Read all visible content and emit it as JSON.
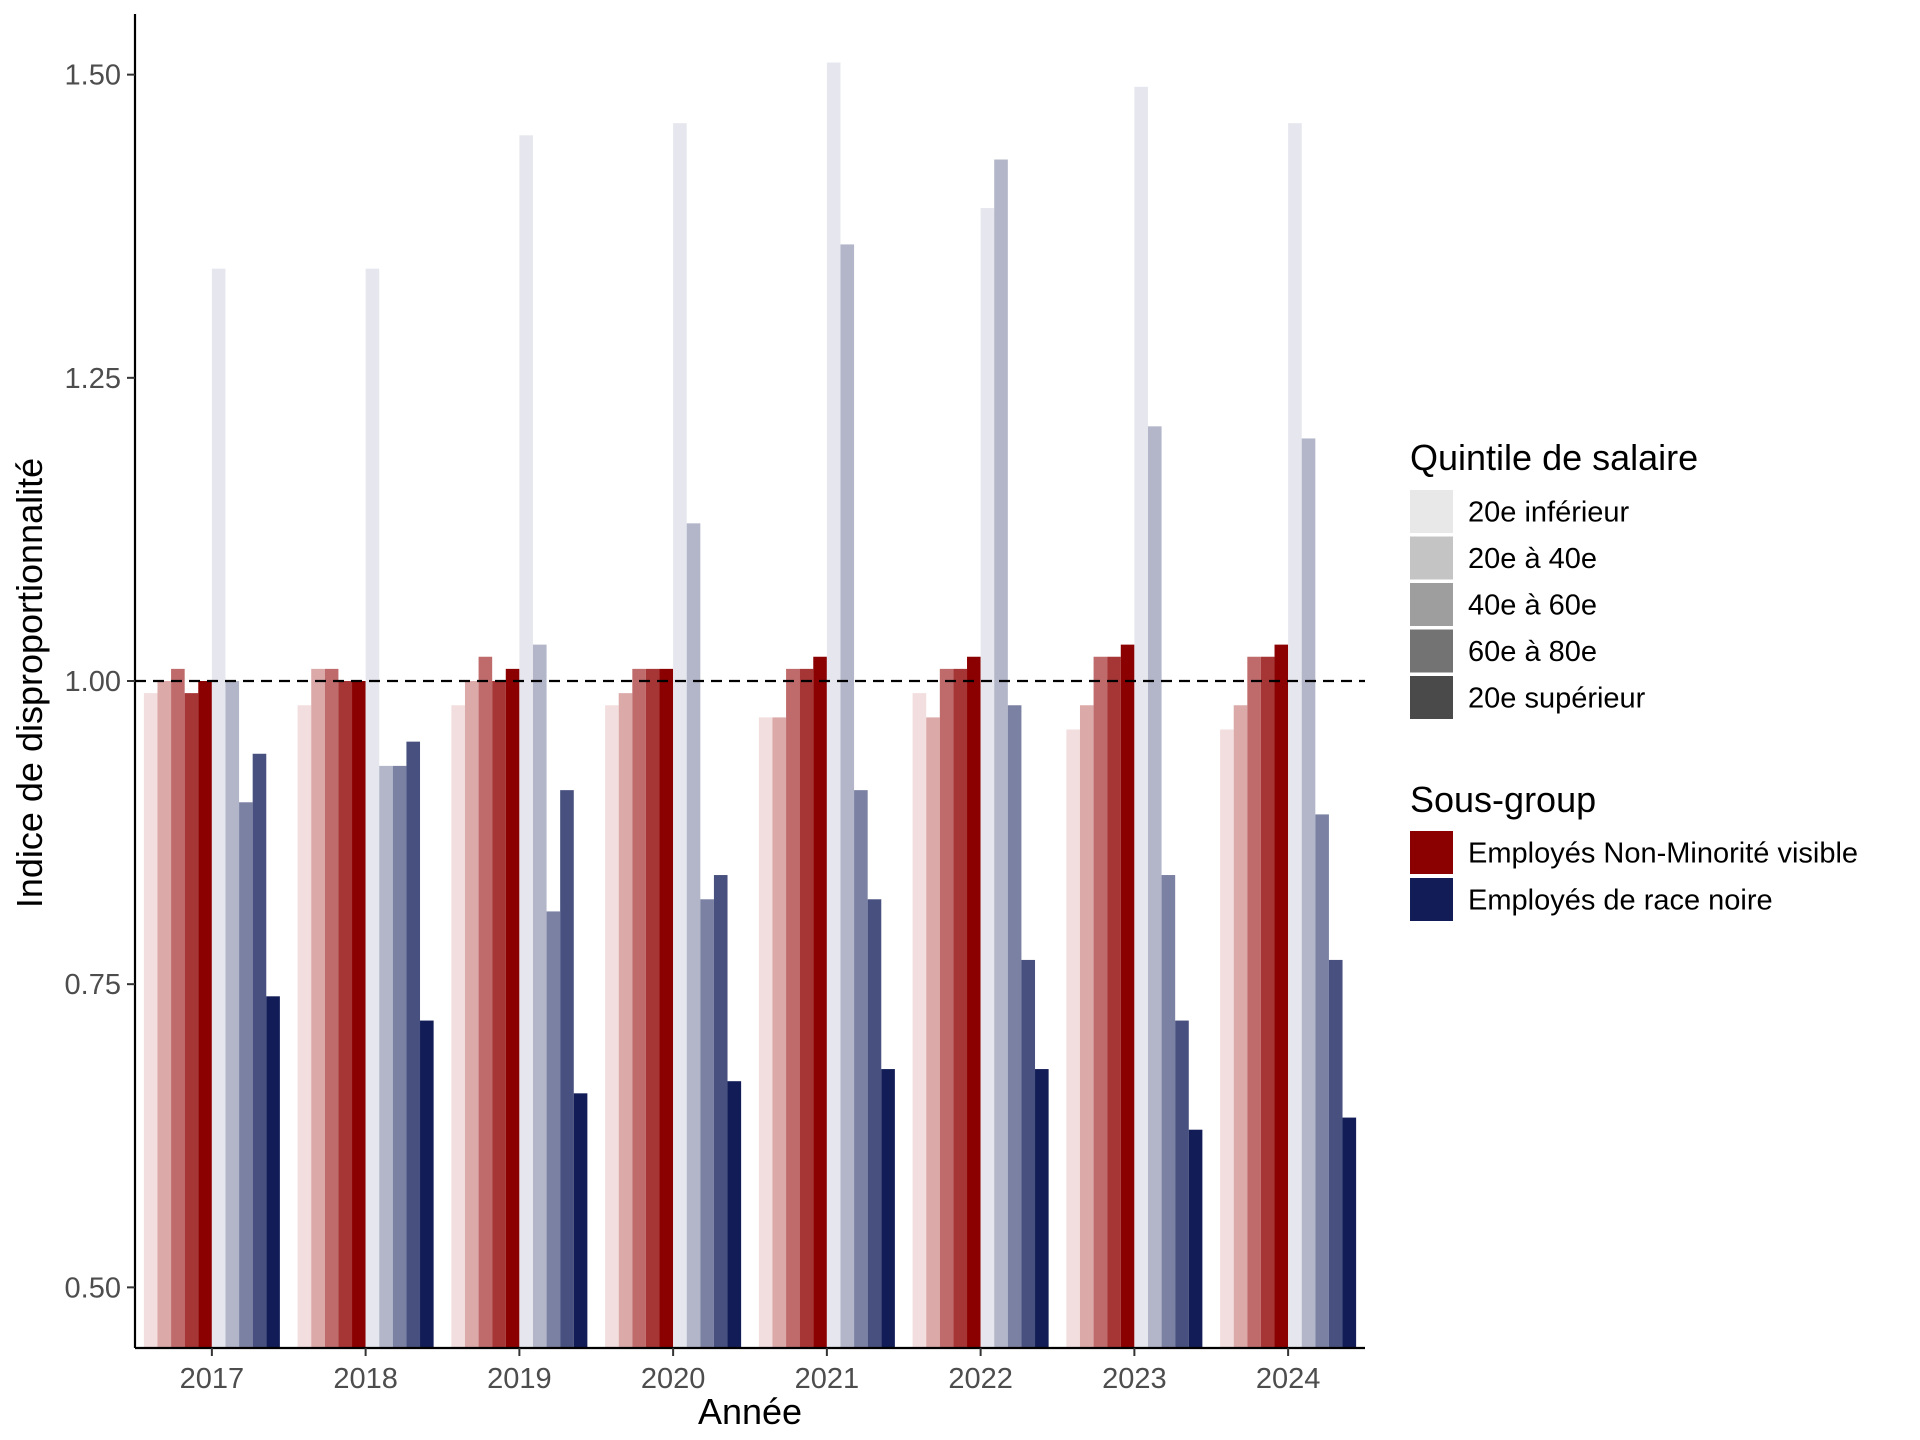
{
  "chart_data": {
    "type": "bar",
    "xlabel": "Année",
    "ylabel": "Indice de disproportionnalité",
    "ylim": [
      0.45,
      1.55
    ],
    "yticks": [
      "0.50",
      "0.75",
      "1.00",
      "1.25",
      "1.50"
    ],
    "reference_line": 1.0,
    "categories": [
      "2017",
      "2018",
      "2019",
      "2020",
      "2021",
      "2022",
      "2023",
      "2024"
    ],
    "legend_quintile": {
      "title": "Quintile de salaire",
      "entries": [
        "20e inférieur",
        "20e à 40e",
        "40e à 60e",
        "60e à 80e",
        "20e supérieur"
      ],
      "swatch_colors": [
        "#e8e8e8",
        "#c4c4c4",
        "#9e9e9e",
        "#737373",
        "#4a4a4a"
      ]
    },
    "legend_group": {
      "title": "Sous-group",
      "entries": [
        "Employés Non-Minorité visible",
        "Employés de race noire"
      ],
      "swatch_colors": [
        "#8b0000",
        "#121d57"
      ]
    },
    "series": [
      {
        "group": 0,
        "quintile": 0,
        "color": "#f2dede",
        "values": [
          0.99,
          0.98,
          0.98,
          0.98,
          0.97,
          0.99,
          0.96,
          0.96
        ]
      },
      {
        "group": 0,
        "quintile": 1,
        "color": "#dca9a9",
        "values": [
          1.0,
          1.01,
          1.0,
          0.99,
          0.97,
          0.97,
          0.98,
          0.98
        ]
      },
      {
        "group": 0,
        "quintile": 2,
        "color": "#c06b6b",
        "values": [
          1.01,
          1.01,
          1.02,
          1.01,
          1.01,
          1.01,
          1.02,
          1.02
        ]
      },
      {
        "group": 0,
        "quintile": 3,
        "color": "#a63535",
        "values": [
          0.99,
          1.0,
          1.0,
          1.01,
          1.01,
          1.01,
          1.02,
          1.02
        ]
      },
      {
        "group": 0,
        "quintile": 4,
        "color": "#8b0000",
        "values": [
          1.0,
          1.0,
          1.01,
          1.01,
          1.02,
          1.02,
          1.03,
          1.03
        ]
      },
      {
        "group": 1,
        "quintile": 0,
        "color": "#e6e7ee",
        "values": [
          1.34,
          1.34,
          1.45,
          1.46,
          1.51,
          1.39,
          1.49,
          1.46
        ]
      },
      {
        "group": 1,
        "quintile": 1,
        "color": "#b2b6c8",
        "values": [
          1.0,
          0.93,
          1.03,
          1.13,
          1.36,
          1.43,
          1.21,
          1.2
        ]
      },
      {
        "group": 1,
        "quintile": 2,
        "color": "#7b81a3",
        "values": [
          0.9,
          0.93,
          0.81,
          0.82,
          0.91,
          0.98,
          0.84,
          0.89
        ]
      },
      {
        "group": 1,
        "quintile": 3,
        "color": "#47507e",
        "values": [
          0.94,
          0.95,
          0.91,
          0.84,
          0.82,
          0.77,
          0.72,
          0.77
        ]
      },
      {
        "group": 1,
        "quintile": 4,
        "color": "#121d57",
        "values": [
          0.74,
          0.72,
          0.66,
          0.67,
          0.68,
          0.68,
          0.63,
          0.64
        ]
      }
    ]
  }
}
